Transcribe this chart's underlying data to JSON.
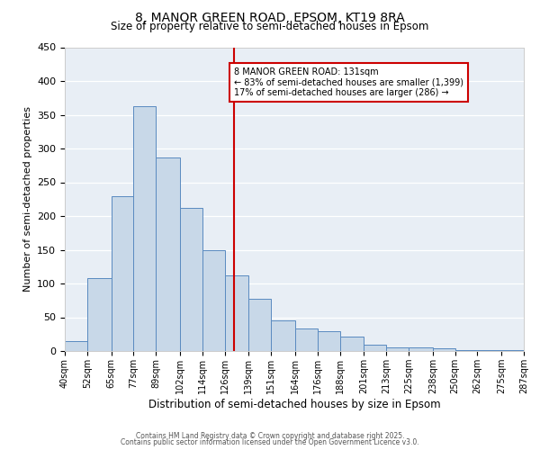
{
  "title": "8, MANOR GREEN ROAD, EPSOM, KT19 8RA",
  "subtitle": "Size of property relative to semi-detached houses in Epsom",
  "xlabel": "Distribution of semi-detached houses by size in Epsom",
  "ylabel": "Number of semi-detached properties",
  "bin_labels": [
    "40sqm",
    "52sqm",
    "65sqm",
    "77sqm",
    "89sqm",
    "102sqm",
    "114sqm",
    "126sqm",
    "139sqm",
    "151sqm",
    "164sqm",
    "176sqm",
    "188sqm",
    "201sqm",
    "213sqm",
    "225sqm",
    "238sqm",
    "250sqm",
    "262sqm",
    "275sqm",
    "287sqm"
  ],
  "bin_edges": [
    40,
    52,
    65,
    77,
    89,
    102,
    114,
    126,
    139,
    151,
    164,
    176,
    188,
    201,
    213,
    225,
    238,
    250,
    262,
    275,
    287
  ],
  "bar_heights": [
    15,
    108,
    230,
    363,
    287,
    212,
    150,
    112,
    78,
    45,
    34,
    30,
    22,
    10,
    5,
    5,
    4,
    1,
    1,
    2
  ],
  "bar_color": "#c8d8e8",
  "bar_edge_color": "#5a8ac0",
  "vline_x": 131,
  "vline_color": "#cc0000",
  "annotation_title": "8 MANOR GREEN ROAD: 131sqm",
  "annotation_line1": "← 83% of semi-detached houses are smaller (1,399)",
  "annotation_line2": "17% of semi-detached houses are larger (286) →",
  "annotation_box_color": "#cc0000",
  "ylim": [
    0,
    450
  ],
  "yticks": [
    0,
    50,
    100,
    150,
    200,
    250,
    300,
    350,
    400,
    450
  ],
  "background_color": "#e8eef5",
  "footnote1": "Contains HM Land Registry data © Crown copyright and database right 2025.",
  "footnote2": "Contains public sector information licensed under the Open Government Licence v3.0."
}
